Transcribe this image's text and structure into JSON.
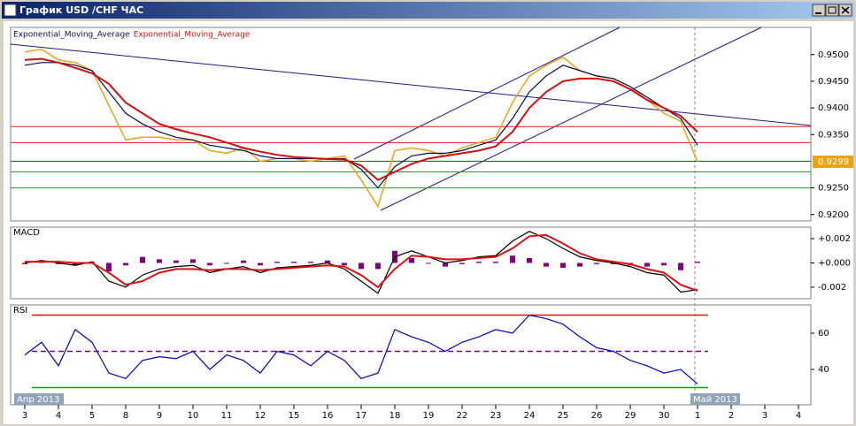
{
  "window": {
    "title": "График USD /CHF ЧАС"
  },
  "chart_data": [
    {
      "type": "line",
      "categories": [
        "3",
        null,
        "4",
        null,
        "5",
        null,
        "8",
        null,
        "9",
        null,
        "10",
        null,
        "11",
        null,
        "12",
        null,
        "15",
        null,
        "16",
        null,
        "17",
        null,
        "18",
        null,
        "19",
        null,
        "22",
        null,
        "23",
        null,
        "24",
        null,
        "25",
        null,
        "26",
        null,
        "29",
        null,
        "30",
        null,
        "1",
        null,
        "2",
        null,
        "3",
        null,
        "4",
        null
      ],
      "period_labels": [
        "Апр 2013",
        "Май 2013"
      ],
      "ylim": [
        0.9188,
        0.9551
      ],
      "yticks": [
        {
          "value": 0.92,
          "label": "0.9200"
        },
        {
          "value": 0.925,
          "label": "0.9250"
        },
        {
          "value": 0.935,
          "label": "0.9350"
        },
        {
          "value": 0.94,
          "label": "0.9400"
        },
        {
          "value": 0.945,
          "label": "0.9450"
        },
        {
          "value": 0.95,
          "label": "0.9500"
        }
      ],
      "last_value_label": "0.9299",
      "hlines": [
        {
          "value": 0.9365,
          "color": "#e02020"
        },
        {
          "value": 0.9335,
          "color": "#e02020"
        },
        {
          "value": 0.93,
          "color": "#006400"
        },
        {
          "value": 0.928,
          "color": "#20a020"
        },
        {
          "value": 0.925,
          "color": "#20a020"
        }
      ],
      "series": [
        {
          "color": "#e8a317",
          "values": [
            0.9505,
            0.951,
            0.949,
            0.9485,
            0.947,
            0.9405,
            0.934,
            0.9345,
            0.9345,
            0.934,
            0.934,
            0.932,
            0.9315,
            0.9325,
            0.93,
            0.9305,
            0.9305,
            0.93,
            0.9305,
            0.931,
            0.9265,
            0.9215,
            0.932,
            0.9325,
            0.932,
            0.931,
            0.9325,
            0.9335,
            0.9345,
            0.941,
            0.946,
            0.948,
            0.9495,
            0.947,
            0.946,
            0.9455,
            0.944,
            0.9415,
            0.939,
            0.9375,
            0.9299,
            null,
            null,
            null,
            null,
            null,
            null,
            null
          ]
        },
        {
          "name": "Exponential_Moving_Average",
          "color": "#0a0a50",
          "values": [
            0.948,
            0.9485,
            0.9485,
            0.948,
            0.947,
            0.943,
            0.939,
            0.937,
            0.9355,
            0.9345,
            0.934,
            0.933,
            0.9325,
            0.932,
            0.931,
            0.9305,
            0.9305,
            0.9305,
            0.9305,
            0.9305,
            0.9285,
            0.925,
            0.929,
            0.931,
            0.9315,
            0.9315,
            0.932,
            0.933,
            0.934,
            0.938,
            0.943,
            0.946,
            0.948,
            0.947,
            0.946,
            0.9455,
            0.944,
            0.942,
            0.94,
            0.938,
            0.933,
            null,
            null,
            null,
            null,
            null,
            null,
            null
          ]
        },
        {
          "name": "Exponential_Moving_Average",
          "color": "#d01010",
          "values": [
            0.949,
            0.9492,
            0.9485,
            0.9475,
            0.9465,
            0.9445,
            0.941,
            0.939,
            0.937,
            0.936,
            0.9352,
            0.9345,
            0.9335,
            0.9325,
            0.9318,
            0.9312,
            0.9308,
            0.9306,
            0.9304,
            0.9303,
            0.9292,
            0.9265,
            0.928,
            0.9295,
            0.9305,
            0.931,
            0.9315,
            0.932,
            0.9328,
            0.9355,
            0.94,
            0.943,
            0.945,
            0.9455,
            0.9455,
            0.945,
            0.9435,
            0.9415,
            0.94,
            0.9385,
            0.9355,
            null,
            null,
            null,
            null,
            null,
            null,
            null
          ]
        }
      ]
    },
    {
      "type": "line",
      "title": "MACD",
      "ylim": [
        -0.00295,
        0.00295
      ],
      "yticks": [
        {
          "value": -0.002,
          "label": "-0.002"
        },
        {
          "value": 0,
          "label": "+0.000"
        },
        {
          "value": 0.002,
          "label": "+0.002"
        }
      ],
      "histogram": {
        "color": "#800080",
        "values": [
          -0.0001,
          0.0001,
          -0.0001,
          -0.0002,
          0.0001,
          -0.0007,
          -0.0002,
          0.0005,
          0.0003,
          0.0002,
          0.0003,
          -0.0002,
          0.0,
          0.0002,
          -0.0002,
          0.0001,
          0.0001,
          0.0001,
          0.0002,
          -0.0002,
          -0.0005,
          -0.0005,
          0.001,
          0.0004,
          0.0,
          -0.0003,
          -0.0001,
          0.0001,
          0.0001,
          0.0006,
          0.0004,
          -0.0003,
          -0.0004,
          -0.0003,
          -0.0001,
          -0.0001,
          -0.0002,
          -0.0003,
          -0.0002,
          -0.0006,
          0.0001,
          null,
          null,
          null,
          null,
          null,
          null,
          null
        ]
      },
      "series": [
        {
          "color": "#000000",
          "values": [
            0.0,
            0.0002,
            0.0,
            -0.0002,
            0.0001,
            -0.0015,
            -0.002,
            -0.001,
            -0.0005,
            -0.0003,
            -0.0002,
            -0.0008,
            -0.0005,
            -0.0003,
            -0.0008,
            -0.0004,
            -0.0003,
            -0.0002,
            0.0,
            -0.0005,
            -0.0015,
            -0.0025,
            0.0005,
            0.001,
            0.0005,
            0.0,
            0.0002,
            0.0005,
            0.0006,
            0.0018,
            0.0026,
            0.002,
            0.0012,
            0.0005,
            0.0002,
            0.0,
            -0.0003,
            -0.0008,
            -0.001,
            -0.0024,
            -0.0022,
            null,
            null,
            null,
            null,
            null,
            null,
            null
          ]
        },
        {
          "color": "#e01010",
          "values": [
            0.0001,
            0.0001,
            0.0001,
            0.0,
            0.0,
            -0.0008,
            -0.0018,
            -0.0015,
            -0.0008,
            -0.0005,
            -0.0005,
            -0.0006,
            -0.0005,
            -0.0005,
            -0.0006,
            -0.0005,
            -0.0004,
            -0.0003,
            -0.0002,
            -0.0003,
            -0.001,
            -0.002,
            -0.0005,
            0.0006,
            0.0005,
            0.0003,
            0.0003,
            0.0004,
            0.0005,
            0.0012,
            0.0022,
            0.0023,
            0.0016,
            0.0008,
            0.0003,
            0.0001,
            -0.0001,
            -0.0005,
            -0.0008,
            -0.0018,
            -0.0023,
            null,
            null,
            null,
            null,
            null,
            null,
            null
          ]
        }
      ]
    },
    {
      "type": "line",
      "title": "RSI",
      "ylim": [
        20.5,
        75.6
      ],
      "yticks": [
        40,
        60
      ],
      "hlines": [
        {
          "value": 70,
          "color": "#e01010"
        },
        {
          "value": 50,
          "color": "#800080",
          "dashed": true
        },
        {
          "value": 30,
          "color": "#10a010"
        }
      ],
      "series": [
        {
          "color": "#0000c8",
          "values": [
            48,
            55,
            42,
            62,
            55,
            38,
            35,
            45,
            47,
            46,
            50,
            40,
            48,
            45,
            38,
            50,
            48,
            42,
            50,
            45,
            35,
            38,
            62,
            58,
            55,
            50,
            55,
            58,
            62,
            60,
            70,
            68,
            65,
            58,
            52,
            50,
            45,
            42,
            38,
            40,
            32,
            null,
            null,
            null,
            null,
            null,
            null,
            null
          ]
        }
      ]
    }
  ]
}
